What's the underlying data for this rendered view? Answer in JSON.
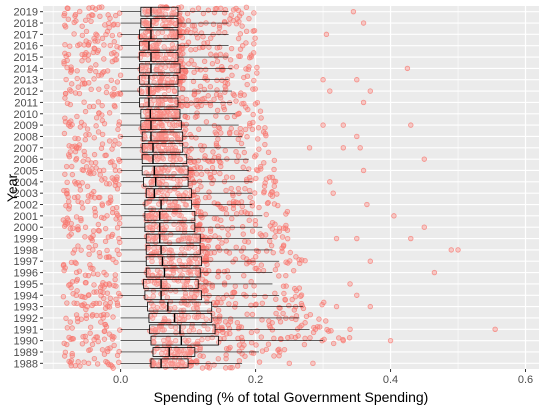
{
  "chart_data": {
    "type": "boxplot",
    "orientation": "horizontal",
    "xlabel": "Spending (% of total Government Spending)",
    "ylabel": "Year",
    "xlim": [
      -0.115,
      0.62
    ],
    "x_ticks": [
      0.0,
      0.2,
      0.4,
      0.6
    ],
    "x_tick_labels": [
      "0.0",
      "0.2",
      "0.4",
      "0.6"
    ],
    "grid": true,
    "colors": {
      "panel": "#ebebeb",
      "grid": "#ffffff",
      "points": "#f8766d",
      "box_fill": "#ffffff",
      "box_line": "#000000"
    },
    "years": [
      "1988",
      "1989",
      "1990",
      "1991",
      "1992",
      "1993",
      "1994",
      "1995",
      "1996",
      "1997",
      "1998",
      "1999",
      "2000",
      "2001",
      "2002",
      "2003",
      "2004",
      "2005",
      "2006",
      "2007",
      "2008",
      "2009",
      "2010",
      "2011",
      "2012",
      "2013",
      "2014",
      "2015",
      "2016",
      "2017",
      "2018",
      "2019"
    ],
    "boxes": [
      {
        "year": "1988",
        "whisker_low": 0.0,
        "q1": 0.045,
        "median": 0.06,
        "q3": 0.1,
        "whisker_high": 0.18
      },
      {
        "year": "1989",
        "whisker_low": 0.0,
        "q1": 0.048,
        "median": 0.072,
        "q3": 0.11,
        "whisker_high": 0.205
      },
      {
        "year": "1990",
        "whisker_low": 0.0,
        "q1": 0.045,
        "median": 0.09,
        "q3": 0.145,
        "whisker_high": 0.3
      },
      {
        "year": "1991",
        "whisker_low": 0.0,
        "q1": 0.043,
        "median": 0.088,
        "q3": 0.14,
        "whisker_high": 0.28
      },
      {
        "year": "1992",
        "whisker_low": 0.0,
        "q1": 0.042,
        "median": 0.08,
        "q3": 0.135,
        "whisker_high": 0.265
      },
      {
        "year": "1993",
        "whisker_low": 0.0,
        "q1": 0.04,
        "median": 0.07,
        "q3": 0.135,
        "whisker_high": 0.27
      },
      {
        "year": "1994",
        "whisker_low": 0.0,
        "q1": 0.036,
        "median": 0.06,
        "q3": 0.12,
        "whisker_high": 0.235
      },
      {
        "year": "1995",
        "whisker_low": 0.0,
        "q1": 0.034,
        "median": 0.06,
        "q3": 0.115,
        "whisker_high": 0.225
      },
      {
        "year": "1996",
        "whisker_low": 0.0,
        "q1": 0.038,
        "median": 0.065,
        "q3": 0.118,
        "whisker_high": 0.225
      },
      {
        "year": "1997",
        "whisker_low": 0.0,
        "q1": 0.038,
        "median": 0.062,
        "q3": 0.12,
        "whisker_high": 0.235
      },
      {
        "year": "1998",
        "whisker_low": 0.0,
        "q1": 0.038,
        "median": 0.06,
        "q3": 0.118,
        "whisker_high": 0.225
      },
      {
        "year": "1999",
        "whisker_low": 0.0,
        "q1": 0.038,
        "median": 0.058,
        "q3": 0.118,
        "whisker_high": 0.225
      },
      {
        "year": "2000",
        "whisker_low": 0.0,
        "q1": 0.036,
        "median": 0.058,
        "q3": 0.11,
        "whisker_high": 0.21
      },
      {
        "year": "2001",
        "whisker_low": 0.0,
        "q1": 0.036,
        "median": 0.058,
        "q3": 0.11,
        "whisker_high": 0.21
      },
      {
        "year": "2002",
        "whisker_low": 0.0,
        "q1": 0.036,
        "median": 0.06,
        "q3": 0.105,
        "whisker_high": 0.195
      },
      {
        "year": "2003",
        "whisker_low": 0.0,
        "q1": 0.038,
        "median": 0.05,
        "q3": 0.105,
        "whisker_high": 0.195
      },
      {
        "year": "2004",
        "whisker_low": 0.0,
        "q1": 0.034,
        "median": 0.052,
        "q3": 0.1,
        "whisker_high": 0.195
      },
      {
        "year": "2005",
        "whisker_low": 0.0,
        "q1": 0.032,
        "median": 0.05,
        "q3": 0.1,
        "whisker_high": 0.19
      },
      {
        "year": "2006",
        "whisker_low": 0.0,
        "q1": 0.032,
        "median": 0.048,
        "q3": 0.098,
        "whisker_high": 0.19
      },
      {
        "year": "2007",
        "whisker_low": 0.0,
        "q1": 0.032,
        "median": 0.048,
        "q3": 0.092,
        "whisker_high": 0.185
      },
      {
        "year": "2008",
        "whisker_low": 0.0,
        "q1": 0.032,
        "median": 0.045,
        "q3": 0.092,
        "whisker_high": 0.18
      },
      {
        "year": "2009",
        "whisker_low": 0.0,
        "q1": 0.03,
        "median": 0.045,
        "q3": 0.09,
        "whisker_high": 0.175
      },
      {
        "year": "2010",
        "whisker_low": 0.0,
        "q1": 0.03,
        "median": 0.044,
        "q3": 0.088,
        "whisker_high": 0.17
      },
      {
        "year": "2011",
        "whisker_low": 0.0,
        "q1": 0.028,
        "median": 0.042,
        "q3": 0.085,
        "whisker_high": 0.165
      },
      {
        "year": "2012",
        "whisker_low": 0.0,
        "q1": 0.028,
        "median": 0.042,
        "q3": 0.085,
        "whisker_high": 0.165
      },
      {
        "year": "2013",
        "whisker_low": 0.0,
        "q1": 0.028,
        "median": 0.042,
        "q3": 0.085,
        "whisker_high": 0.16
      },
      {
        "year": "2014",
        "whisker_low": 0.0,
        "q1": 0.028,
        "median": 0.045,
        "q3": 0.088,
        "whisker_high": 0.165
      },
      {
        "year": "2015",
        "whisker_low": 0.0,
        "q1": 0.028,
        "median": 0.045,
        "q3": 0.085,
        "whisker_high": 0.16
      },
      {
        "year": "2016",
        "whisker_low": 0.0,
        "q1": 0.028,
        "median": 0.042,
        "q3": 0.085,
        "whisker_high": 0.16
      },
      {
        "year": "2017",
        "whisker_low": 0.0,
        "q1": 0.028,
        "median": 0.045,
        "q3": 0.085,
        "whisker_high": 0.16
      },
      {
        "year": "2018",
        "whisker_low": 0.0,
        "q1": 0.03,
        "median": 0.045,
        "q3": 0.085,
        "whisker_high": 0.16
      },
      {
        "year": "2019",
        "whisker_low": 0.0,
        "q1": 0.03,
        "median": 0.045,
        "q3": 0.085,
        "whisker_high": 0.16
      }
    ],
    "outliers": [
      {
        "year": "2019",
        "x": 0.345
      },
      {
        "year": "2018",
        "x": 0.36
      },
      {
        "year": "2017",
        "x": 0.305
      },
      {
        "year": "2014",
        "x": 0.425
      },
      {
        "year": "2013",
        "x": 0.3
      },
      {
        "year": "2013",
        "x": 0.35
      },
      {
        "year": "2012",
        "x": 0.31
      },
      {
        "year": "2012",
        "x": 0.37
      },
      {
        "year": "2011",
        "x": 0.36
      },
      {
        "year": "2009",
        "x": 0.3
      },
      {
        "year": "2009",
        "x": 0.33
      },
      {
        "year": "2009",
        "x": 0.43
      },
      {
        "year": "2008",
        "x": 0.35
      },
      {
        "year": "2007",
        "x": 0.28
      },
      {
        "year": "2007",
        "x": 0.33
      },
      {
        "year": "2007",
        "x": 0.355
      },
      {
        "year": "2006",
        "x": 0.45
      },
      {
        "year": "2005",
        "x": 0.36
      },
      {
        "year": "2004",
        "x": 0.31
      },
      {
        "year": "2003",
        "x": 0.315
      },
      {
        "year": "2002",
        "x": 0.365
      },
      {
        "year": "2001",
        "x": 0.405
      },
      {
        "year": "2000",
        "x": 0.45
      },
      {
        "year": "1999",
        "x": 0.32
      },
      {
        "year": "1999",
        "x": 0.35
      },
      {
        "year": "1999",
        "x": 0.43
      },
      {
        "year": "1998",
        "x": 0.49
      },
      {
        "year": "1998",
        "x": 0.5
      },
      {
        "year": "1997",
        "x": 0.37
      },
      {
        "year": "1996",
        "x": 0.465
      },
      {
        "year": "1995",
        "x": 0.34
      },
      {
        "year": "1994",
        "x": 0.35
      },
      {
        "year": "1993",
        "x": 0.32
      },
      {
        "year": "1993",
        "x": 0.37
      },
      {
        "year": "1991",
        "x": 0.555
      },
      {
        "year": "1991",
        "x": 0.34
      },
      {
        "year": "1990",
        "x": 0.33
      },
      {
        "year": "1990",
        "x": 0.4
      },
      {
        "year": "1988",
        "x": 0.25
      },
      {
        "year": "1988",
        "x": 0.285
      }
    ]
  }
}
